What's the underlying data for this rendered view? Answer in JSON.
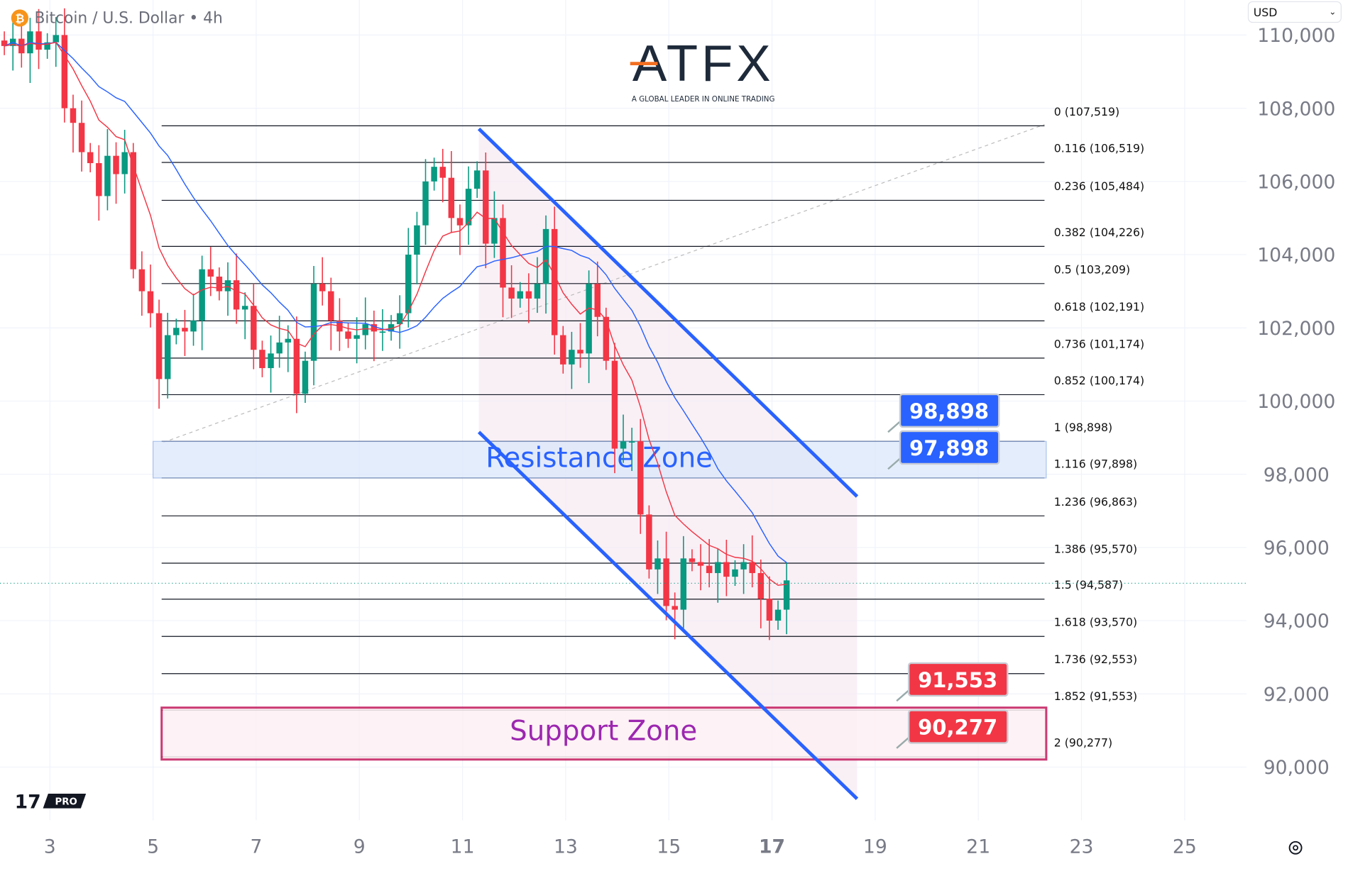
{
  "header": {
    "symbol_title": "Bitcoin / U.S. Dollar • 4h",
    "currency": "USD"
  },
  "logo": {
    "brand": "ATFX",
    "tagline": "A GLOBAL LEADER IN ONLINE TRADING",
    "tv_badge": "PRO"
  },
  "colors": {
    "up": "#089981",
    "down": "#f23645",
    "ema": "#f23645",
    "sma": "#2962ff",
    "channel": "#2962ff",
    "resistance": "#2962ff",
    "support": "#c2185b"
  },
  "chart_data": {
    "type": "candlestick",
    "title": "Bitcoin / U.S. Dollar • 4h",
    "x_ticks": [
      "3",
      "5",
      "7",
      "9",
      "11",
      "13",
      "15",
      "17",
      "19",
      "21",
      "23",
      "25"
    ],
    "x_tick_bold": "17",
    "y_ticks": [
      "110,000",
      "108,000",
      "106,000",
      "104,000",
      "102,000",
      "100,000",
      "98,000",
      "96,000",
      "94,000",
      "92,000",
      "90,000"
    ],
    "ylim": [
      89000,
      110500
    ],
    "start_day": 2.1,
    "candle_hours": 4,
    "closes": [
      109.7,
      109.9,
      109.5,
      110.1,
      109.6,
      109.8,
      110.0,
      108.0,
      107.6,
      106.8,
      106.5,
      105.6,
      106.7,
      106.2,
      106.8,
      103.6,
      103.0,
      102.4,
      100.6,
      101.8,
      102.0,
      101.9,
      102.2,
      103.6,
      103.4,
      103.0,
      103.3,
      102.5,
      102.6,
      101.4,
      100.9,
      101.3,
      101.6,
      101.7,
      100.2,
      101.1,
      103.2,
      103.0,
      102.2,
      101.9,
      101.7,
      101.8,
      102.1,
      101.9,
      101.9,
      102.1,
      102.4,
      104.0,
      104.8,
      106.0,
      106.4,
      106.1,
      105.0,
      104.8,
      105.8,
      106.3,
      104.3,
      105.0,
      103.1,
      102.8,
      103.0,
      102.8,
      103.2,
      104.7,
      101.8,
      101.0,
      101.4,
      101.3,
      103.2,
      102.3,
      101.1,
      98.7,
      98.9,
      98.9,
      96.9,
      95.4,
      95.7,
      94.4,
      94.3,
      95.7,
      95.6,
      95.5,
      95.3,
      95.6,
      95.2,
      95.4,
      95.6,
      95.3,
      94.6,
      94.0,
      94.3,
      95.1
    ],
    "closes_unit": "thousand USD",
    "moving_averages": [
      {
        "name": "EMA",
        "period": 9,
        "color": "#f23645"
      },
      {
        "name": "SMA",
        "period": 20,
        "color": "#2962ff"
      }
    ],
    "current_price": 94900,
    "fib_levels": [
      {
        "label": "0 (107,519)",
        "price": 107519
      },
      {
        "label": "0.116 (106,519)",
        "price": 106519
      },
      {
        "label": "0.236 (105,484)",
        "price": 105484
      },
      {
        "label": "0.382 (104,226)",
        "price": 104226
      },
      {
        "label": "0.5 (103,209)",
        "price": 103209
      },
      {
        "label": "0.618 (102,191)",
        "price": 102191
      },
      {
        "label": "0.736 (101,174)",
        "price": 101174
      },
      {
        "label": "0.852 (100,174)",
        "price": 100174
      },
      {
        "label": "1 (98,898)",
        "price": 98898
      },
      {
        "label": "1.116 (97,898)",
        "price": 97898
      },
      {
        "label": "1.236 (96,863)",
        "price": 96863
      },
      {
        "label": "1.386 (95,570)",
        "price": 95570
      },
      {
        "label": "1.5 (94,587)",
        "price": 94587
      },
      {
        "label": "1.618 (93,570)",
        "price": 93570
      },
      {
        "label": "1.736 (92,553)",
        "price": 92553
      },
      {
        "label": "1.852 (91,553)",
        "price": 91553
      },
      {
        "label": "2 (90,277)",
        "price": 90277
      }
    ],
    "zones": {
      "resistance": {
        "label": "Resistance Zone",
        "top": 98898,
        "bottom": 97898
      },
      "support": {
        "label": "Support Zone",
        "top": 91553,
        "bottom": 90277
      }
    },
    "price_tags": [
      {
        "text": "98,898",
        "kind": "resistance"
      },
      {
        "text": "97,898",
        "kind": "resistance"
      },
      {
        "text": "91,553",
        "kind": "support"
      },
      {
        "text": "90,277",
        "kind": "support"
      }
    ]
  }
}
